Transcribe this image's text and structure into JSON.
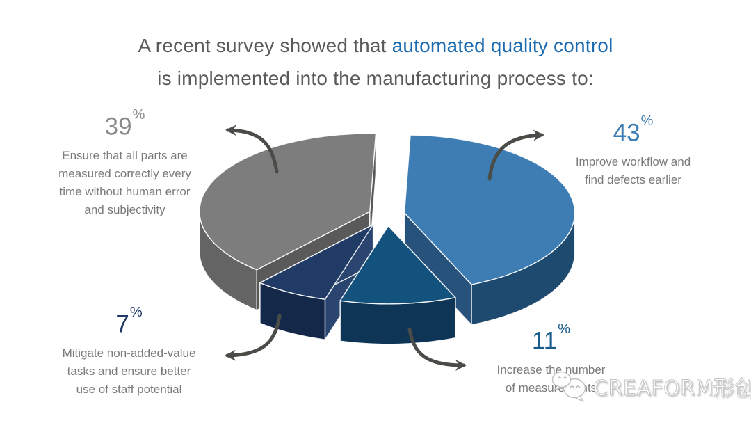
{
  "title": {
    "line1_gray": "A recent survey showed that",
    "line1_blue": "automated quality control",
    "line2": "is implemented into the manufacturing process to:"
  },
  "colors": {
    "background": "#FFFFFF",
    "title_gray": "#5A5A5A",
    "title_blue": "#1C6BB0",
    "desc_gray": "#7A7A7A",
    "arrow": "#4B4B48",
    "pct_39": "#8A8A8A",
    "pct_43": "#3E7DB3",
    "pct_7": "#1F3864",
    "pct_11": "#175A8C"
  },
  "labels": {
    "pct43": {
      "num": "43",
      "sup": "%",
      "lines": [
        "Improve workflow and",
        "find defects earlier"
      ]
    },
    "pct39": {
      "num": "39",
      "sup": "%",
      "lines": [
        "Ensure that all parts are",
        "measured correctly every",
        "time without human  error",
        "and subjectivity"
      ]
    },
    "pct7": {
      "num": "7",
      "sup": "%",
      "lines": [
        "Mitigate non-added-value",
        "tasks and ensure better",
        "use of staff potential"
      ]
    },
    "pct11": {
      "num": "11",
      "sup": "%",
      "lines": [
        "Increase the number",
        "of measurements"
      ]
    }
  },
  "watermark": {
    "icon": "wechat-bubbles-icon",
    "text": "CREAFORM形创"
  },
  "chart_data": {
    "type": "pie",
    "style": "3d-exploded",
    "unit": "%",
    "title": "A recent survey showed that automated quality control is implemented into the manufacturing process to:",
    "legend": false,
    "slices": [
      {
        "label": "Improve workflow and find defects earlier",
        "value": 43,
        "colors": {
          "top": "#3E7DB3",
          "side": "#1E4A70",
          "radial": "#27527C"
        }
      },
      {
        "label": "Increase the number of measurements",
        "value": 11,
        "colors": {
          "top": "#14527E",
          "side": "#0F3556",
          "radial": "#1B4A6F"
        }
      },
      {
        "label": "Mitigate non-added-value tasks and ensure better use of staff potential",
        "value": 7,
        "colors": {
          "top": "#203C66",
          "side": "#14294A",
          "radial": "#2A4670"
        }
      },
      {
        "label": "Ensure that all parts are measured correctly every time without human error and subjectivity",
        "value": 39,
        "colors": {
          "top": "#7D7D7D",
          "side": "#646464",
          "radial": "#5A5A5A"
        }
      }
    ]
  }
}
